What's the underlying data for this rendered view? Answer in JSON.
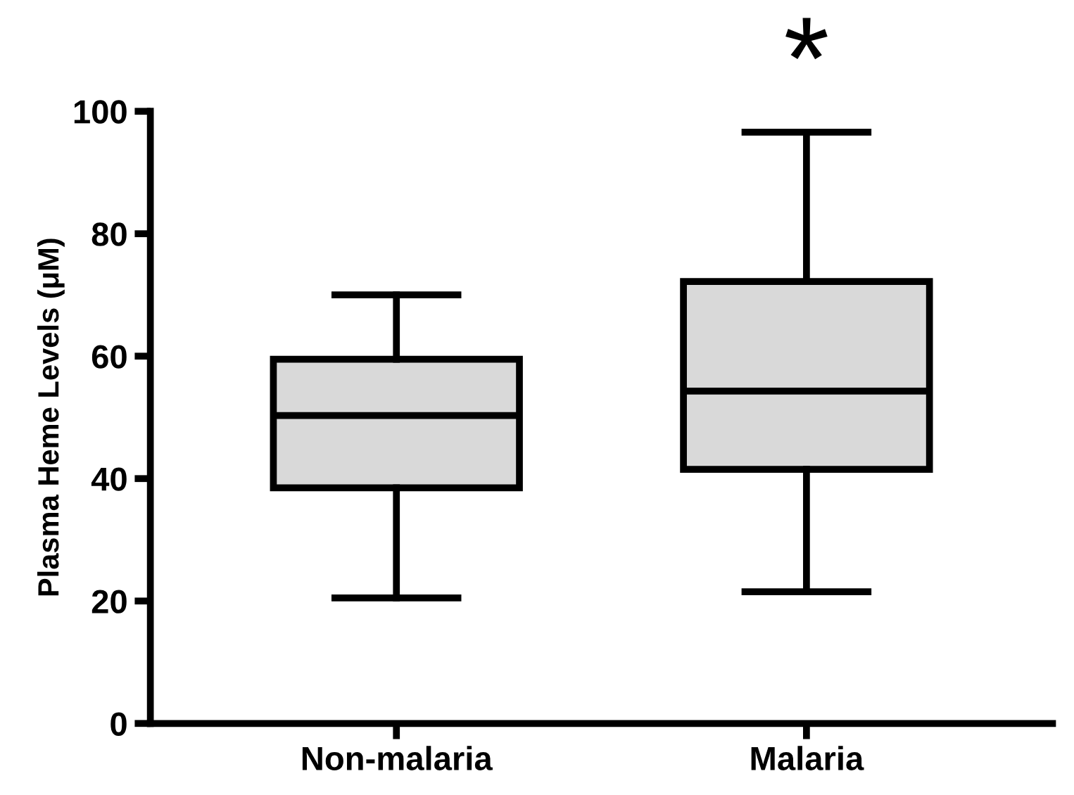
{
  "chart_data": {
    "type": "box",
    "ylabel": "Plasma Heme Levels (μM)",
    "categories": [
      "Non-malaria",
      "Malaria"
    ],
    "color": "#d9d9d9",
    "boxes": [
      {
        "low": 20.5,
        "q1": 38.5,
        "median": 50.3,
        "q3": 59.5,
        "high": 70
      },
      {
        "low": 21.5,
        "q1": 41.5,
        "median": 54.3,
        "q3": 72.2,
        "high": 96.6
      }
    ],
    "ylim": [
      0,
      100
    ],
    "yticks": [
      0,
      20,
      40,
      60,
      80,
      100
    ],
    "grid": false,
    "annotations": [
      "*"
    ]
  }
}
